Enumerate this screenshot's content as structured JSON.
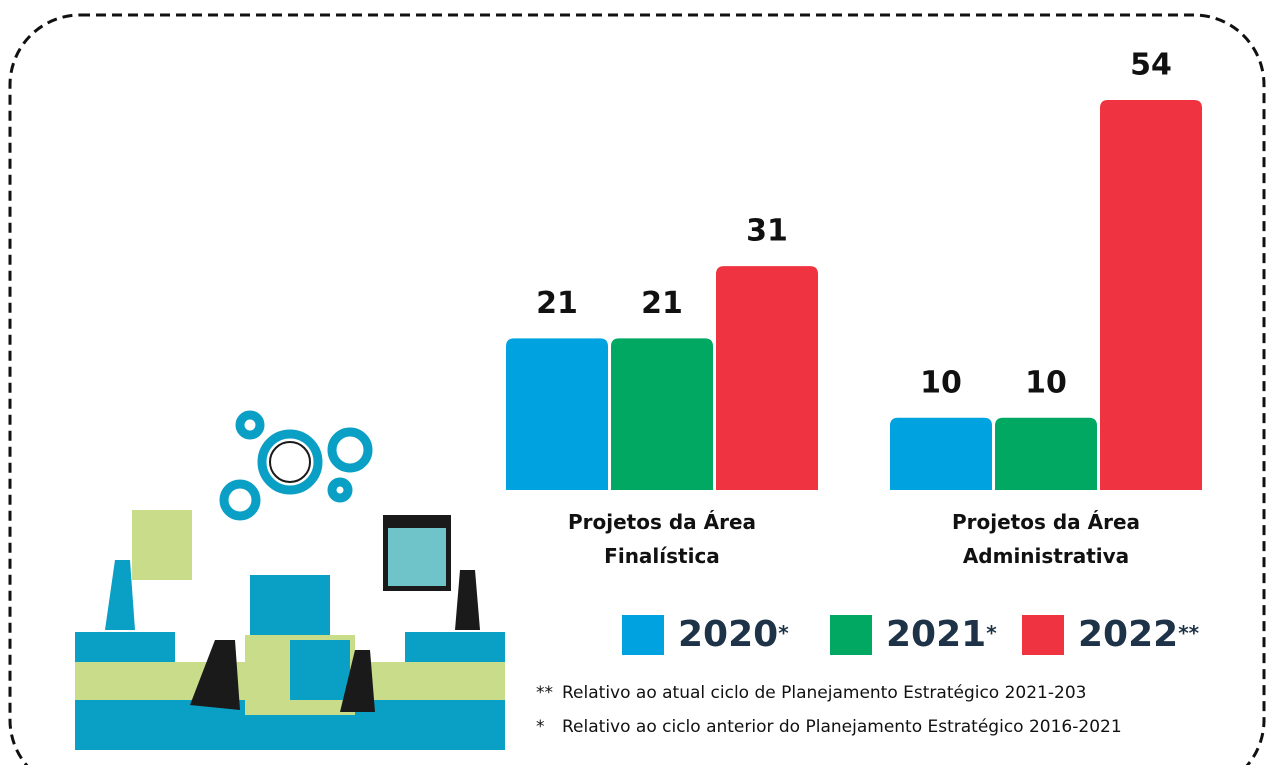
{
  "chart_data": {
    "type": "bar",
    "categories": [
      "Projetos da Área Finalística",
      "Projetos da Área Administrativa"
    ],
    "series": [
      {
        "name": "2020",
        "marker": "*",
        "color": "#00a3e0",
        "values": [
          21,
          10
        ]
      },
      {
        "name": "2021",
        "marker": "*",
        "color": "#00a862",
        "values": [
          21,
          10
        ]
      },
      {
        "name": "2022",
        "marker": "**",
        "color": "#ef3340",
        "values": [
          31,
          54
        ]
      }
    ],
    "notes": [
      {
        "marker": "**",
        "text": "Relativo ao atual ciclo de Planejamento Estratégico 2021-203"
      },
      {
        "marker": "*",
        "text": "Relativo ao ciclo anterior do Planejamento Estratégico 2016-2021"
      }
    ]
  }
}
